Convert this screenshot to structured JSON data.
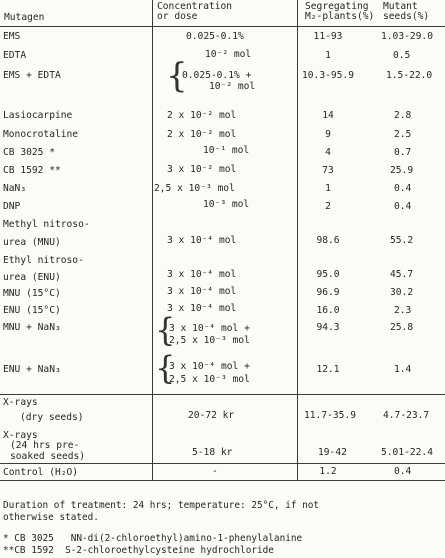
{
  "header": {
    "mutagen": "Mutagen",
    "conc_line1": "Concentration",
    "conc_line2": "or dose",
    "seg_line1": "Segregating",
    "seg_line2": "M₂-plants(%)",
    "mut_line1": "Mutant",
    "mut_line2": "seeds(%)"
  },
  "rows": {
    "ems": {
      "name": "EMS",
      "conc": "0.025-0.1%",
      "seg": "11-93",
      "mut": "1.03-29.0"
    },
    "edta": {
      "name": "EDTA",
      "conc": "10⁻² mol",
      "seg": "1",
      "mut": "0.5"
    },
    "emsedta": {
      "name": "EMS + EDTA",
      "conc1": "0.025-0.1% +",
      "conc2": "10⁻² mol",
      "seg": "10.3-95.9",
      "mut": "1.5-22.0"
    },
    "lasio": {
      "name": "Lasiocarpine",
      "conc": "2 x 10⁻² mol",
      "seg": "14",
      "mut": "2.8"
    },
    "mono": {
      "name": "Monocrotaline",
      "conc": "2 x 10⁻² mol",
      "seg": "9",
      "mut": "2.5"
    },
    "cb3025": {
      "name": "CB 3025 *",
      "conc": "10⁻¹ mol",
      "seg": "4",
      "mut": "0.7"
    },
    "cb1592": {
      "name": "CB 1592 **",
      "conc": "3 x 10⁻² mol",
      "seg": "73",
      "mut": "25.9"
    },
    "nan3": {
      "name": "NaN₃",
      "conc": "2,5 x 10⁻³ mol",
      "seg": "1",
      "mut": "0.4"
    },
    "dnp": {
      "name": "DNP",
      "conc": "10⁻³ mol",
      "seg": "2",
      "mut": "0.4"
    },
    "mnu": {
      "name1": "Methyl nitroso-",
      "name2": "urea (MNU)",
      "conc": "3 x 10⁻⁴ mol",
      "seg": "98.6",
      "mut": "55.2"
    },
    "enu": {
      "name1": "Ethyl nitroso-",
      "name2": "urea (ENU)",
      "conc": "3 x 10⁻⁴ mol",
      "seg": "95.0",
      "mut": "45.7"
    },
    "mnu15": {
      "name": "MNU (15°C)",
      "conc": "3 x 10⁻⁴ mol",
      "seg": "96.9",
      "mut": "30.2"
    },
    "enu15": {
      "name": "ENU (15°C)",
      "conc": "3 x 10⁻⁴ mol",
      "seg": "16.0",
      "mut": "2.3"
    },
    "mnunan3": {
      "name": "MNU + NaN₃",
      "conc1": "3 x 10⁻⁴ mol +",
      "conc2": "2,5 x 10⁻³ mol",
      "seg": "94.3",
      "mut": "25.8"
    },
    "enunan3": {
      "name": "ENU + NaN₃",
      "conc1": "3 x 10⁻⁴ mol +",
      "conc2": "2,5 x 10⁻³ mol",
      "seg": "12.1",
      "mut": "1.4"
    },
    "xdry": {
      "name1": "X-rays",
      "name2": "(dry seeds)",
      "conc": "20-72 kr",
      "seg": "11.7-35.9",
      "mut": "4.7-23.7"
    },
    "xsoak": {
      "name1": "X-rays",
      "name2": "(24 hrs pre-",
      "name3": "soaked seeds)",
      "conc": "5-18 kr",
      "seg": "19-42",
      "mut": "5.01-22.4"
    },
    "control": {
      "name": "Control (H₂O)",
      "conc": "-",
      "seg": "1.2",
      "mut": "0.4"
    }
  },
  "footnotes": {
    "line1": "Duration of treatment: 24 hrs; temperature: 25°C, if not",
    "line2": "otherwise stated.",
    "line3": "* CB 3025   NN-di(2-chloroethyl)amino-1-phenylalanine",
    "line4": "**CB 1592  S-2-chloroethylcysteine hydrochloride"
  }
}
